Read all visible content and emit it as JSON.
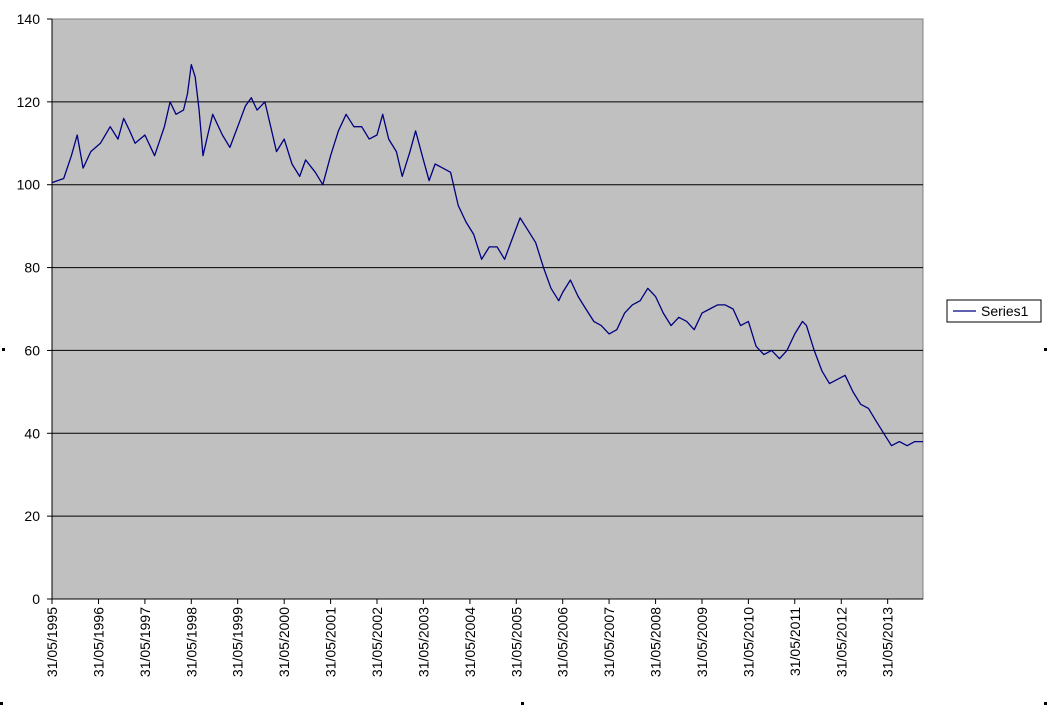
{
  "chart_data": {
    "type": "line",
    "title": "",
    "xlabel": "",
    "ylabel": "",
    "ylim": [
      0,
      140
    ],
    "yticks": [
      0,
      20,
      40,
      60,
      80,
      100,
      120,
      140
    ],
    "xlim": [
      "1995-05-31",
      "2014-03-05"
    ],
    "xtick_labels": [
      "31/05/1995",
      "31/05/1996",
      "31/05/1997",
      "31/05/1998",
      "31/05/1999",
      "31/05/2000",
      "31/05/2001",
      "31/05/2002",
      "31/05/2003",
      "31/05/2004",
      "31/05/2005",
      "31/05/2006",
      "31/05/2007",
      "31/05/2008",
      "31/05/2009",
      "31/05/2010",
      "31/05/2011",
      "31/05/2012",
      "31/05/2013"
    ],
    "grid": true,
    "legend": "right",
    "colors": {
      "plot_background": "#c0c0c0",
      "series": "#000080",
      "gridline": "#000000"
    },
    "series": [
      {
        "name": "Series1",
        "points": [
          [
            "1995-05-31",
            100.5
          ],
          [
            "1995-08-31",
            101.5
          ],
          [
            "1995-10-31",
            107
          ],
          [
            "1995-12-15",
            112
          ],
          [
            "1996-01-31",
            104
          ],
          [
            "1996-03-31",
            108
          ],
          [
            "1996-06-15",
            110
          ],
          [
            "1996-08-31",
            114
          ],
          [
            "1996-10-31",
            111
          ],
          [
            "1996-12-15",
            116
          ],
          [
            "1997-01-31",
            113
          ],
          [
            "1997-03-15",
            110
          ],
          [
            "1997-05-31",
            112
          ],
          [
            "1997-08-15",
            107
          ],
          [
            "1997-10-31",
            114
          ],
          [
            "1997-12-15",
            120
          ],
          [
            "1998-01-31",
            117
          ],
          [
            "1998-03-31",
            118
          ],
          [
            "1998-04-31",
            122
          ],
          [
            "1998-05-31",
            129
          ],
          [
            "1998-06-31",
            126
          ],
          [
            "1998-07-31",
            118
          ],
          [
            "1998-08-31",
            107
          ],
          [
            "1998-10-15",
            113
          ],
          [
            "1998-11-15",
            117
          ],
          [
            "1999-01-31",
            112
          ],
          [
            "1999-03-31",
            109
          ],
          [
            "1999-05-31",
            114
          ],
          [
            "1999-07-31",
            119
          ],
          [
            "1999-09-15",
            121
          ],
          [
            "1999-10-31",
            118
          ],
          [
            "1999-12-31",
            120
          ],
          [
            "2000-02-15",
            114
          ],
          [
            "2000-03-31",
            108
          ],
          [
            "2000-05-31",
            111
          ],
          [
            "2000-07-31",
            105
          ],
          [
            "2000-09-30",
            102
          ],
          [
            "2000-11-15",
            106
          ],
          [
            "2001-01-31",
            103
          ],
          [
            "2001-03-31",
            100
          ],
          [
            "2001-05-31",
            107
          ],
          [
            "2001-07-31",
            113
          ],
          [
            "2001-09-30",
            117
          ],
          [
            "2001-11-30",
            114
          ],
          [
            "2002-01-31",
            114
          ],
          [
            "2002-03-31",
            111
          ],
          [
            "2002-05-31",
            112
          ],
          [
            "2002-07-15",
            117
          ],
          [
            "2002-08-31",
            111
          ],
          [
            "2002-10-31",
            108
          ],
          [
            "2002-12-15",
            102
          ],
          [
            "2003-02-15",
            108
          ],
          [
            "2003-03-31",
            113
          ],
          [
            "2003-05-31",
            106
          ],
          [
            "2003-07-15",
            101
          ],
          [
            "2003-08-31",
            105
          ],
          [
            "2003-10-31",
            104
          ],
          [
            "2003-12-31",
            103
          ],
          [
            "2004-02-29",
            95
          ],
          [
            "2004-04-30",
            91
          ],
          [
            "2004-06-30",
            88
          ],
          [
            "2004-08-31",
            82
          ],
          [
            "2004-10-31",
            85
          ],
          [
            "2004-12-31",
            85
          ],
          [
            "2005-02-28",
            82
          ],
          [
            "2005-04-30",
            87
          ],
          [
            "2005-06-30",
            92
          ],
          [
            "2005-08-31",
            89
          ],
          [
            "2005-10-31",
            86
          ],
          [
            "2005-12-31",
            80
          ],
          [
            "2006-02-28",
            75
          ],
          [
            "2006-04-30",
            72
          ],
          [
            "2006-05-31",
            74
          ],
          [
            "2006-07-31",
            77
          ],
          [
            "2006-09-30",
            73
          ],
          [
            "2006-11-30",
            70
          ],
          [
            "2007-01-31",
            67
          ],
          [
            "2007-03-31",
            66
          ],
          [
            "2007-05-31",
            64
          ],
          [
            "2007-07-31",
            65
          ],
          [
            "2007-09-30",
            69
          ],
          [
            "2007-11-30",
            71
          ],
          [
            "2008-01-31",
            72
          ],
          [
            "2008-03-31",
            75
          ],
          [
            "2008-05-31",
            73
          ],
          [
            "2008-07-31",
            69
          ],
          [
            "2008-09-30",
            66
          ],
          [
            "2008-11-30",
            68
          ],
          [
            "2009-01-31",
            67
          ],
          [
            "2009-03-31",
            65
          ],
          [
            "2009-05-31",
            69
          ],
          [
            "2009-07-31",
            70
          ],
          [
            "2009-09-30",
            71
          ],
          [
            "2009-11-30",
            71
          ],
          [
            "2010-01-31",
            70
          ],
          [
            "2010-03-31",
            66
          ],
          [
            "2010-05-31",
            67
          ],
          [
            "2010-07-31",
            61
          ],
          [
            "2010-09-30",
            59
          ],
          [
            "2010-11-30",
            60
          ],
          [
            "2011-01-31",
            58
          ],
          [
            "2011-03-31",
            60
          ],
          [
            "2011-05-31",
            64
          ],
          [
            "2011-07-31",
            67
          ],
          [
            "2011-08-31",
            66
          ],
          [
            "2011-10-31",
            60
          ],
          [
            "2011-12-31",
            55
          ],
          [
            "2012-02-28",
            52
          ],
          [
            "2012-04-30",
            53
          ],
          [
            "2012-06-30",
            54
          ],
          [
            "2012-08-31",
            50
          ],
          [
            "2012-10-31",
            47
          ],
          [
            "2012-12-31",
            46
          ],
          [
            "2013-02-28",
            43
          ],
          [
            "2013-04-30",
            40
          ],
          [
            "2013-06-30",
            37
          ],
          [
            "2013-08-31",
            38
          ],
          [
            "2013-10-31",
            37
          ],
          [
            "2013-12-31",
            38
          ],
          [
            "2014-03-05",
            38
          ]
        ]
      }
    ]
  }
}
